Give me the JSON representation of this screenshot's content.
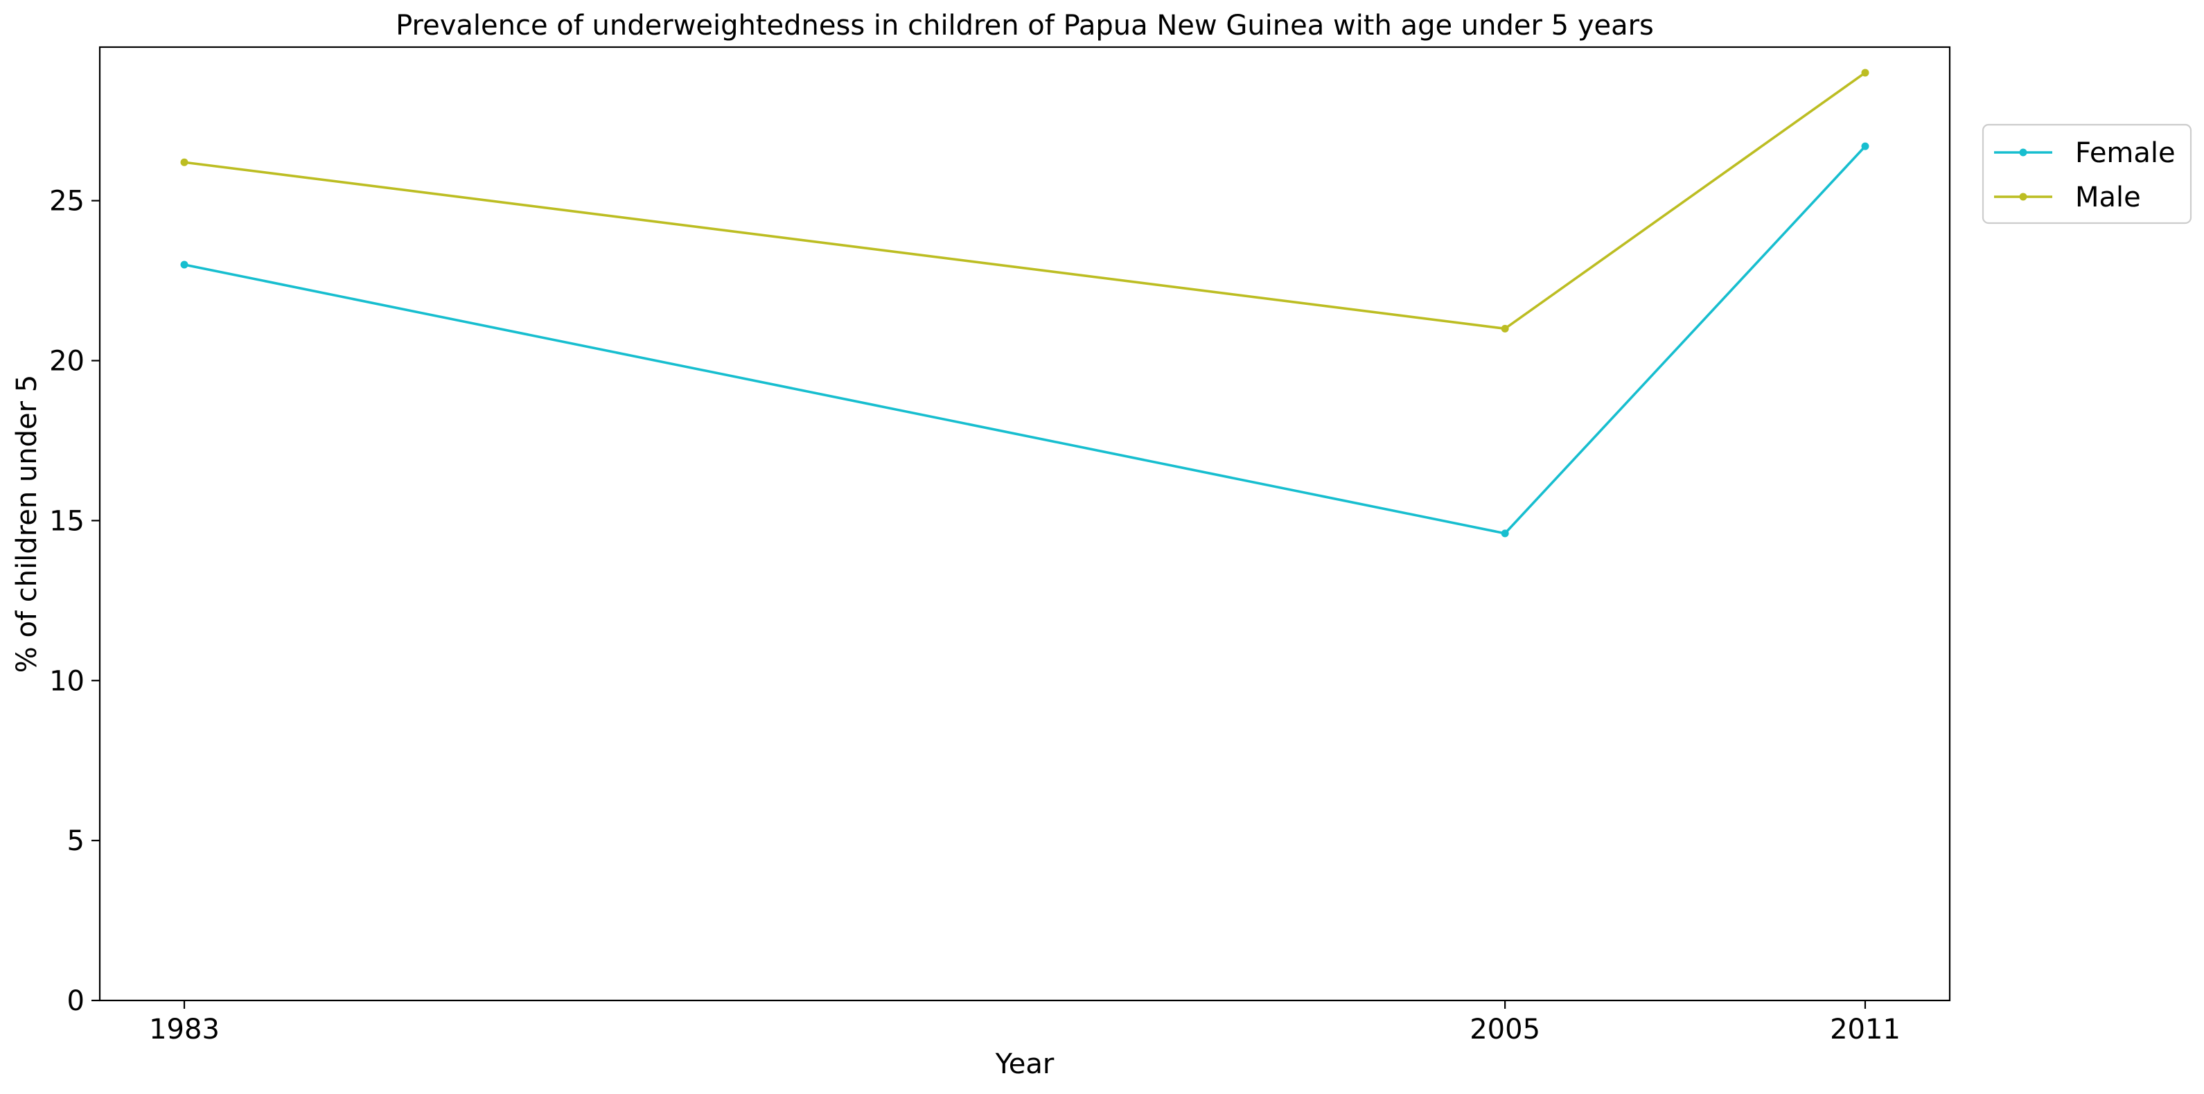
{
  "chart_data": {
    "type": "line",
    "title": "Prevalence of underweightedness in children of Papua New Guinea with age under 5 years",
    "xlabel": "Year",
    "ylabel": "% of children under 5",
    "categories": [
      "1983",
      "2005",
      "2011"
    ],
    "yticks": [
      0,
      5,
      10,
      15,
      20,
      25
    ],
    "ylim": [
      0,
      29.8
    ],
    "grid": false,
    "legend_position": "right, outside plot area, top",
    "series": [
      {
        "name": "Female",
        "color": "#17becf",
        "values": [
          23.0,
          14.6,
          26.7
        ]
      },
      {
        "name": "Male",
        "color": "#bcbd22",
        "values": [
          26.2,
          21.0,
          29.0
        ]
      }
    ]
  }
}
